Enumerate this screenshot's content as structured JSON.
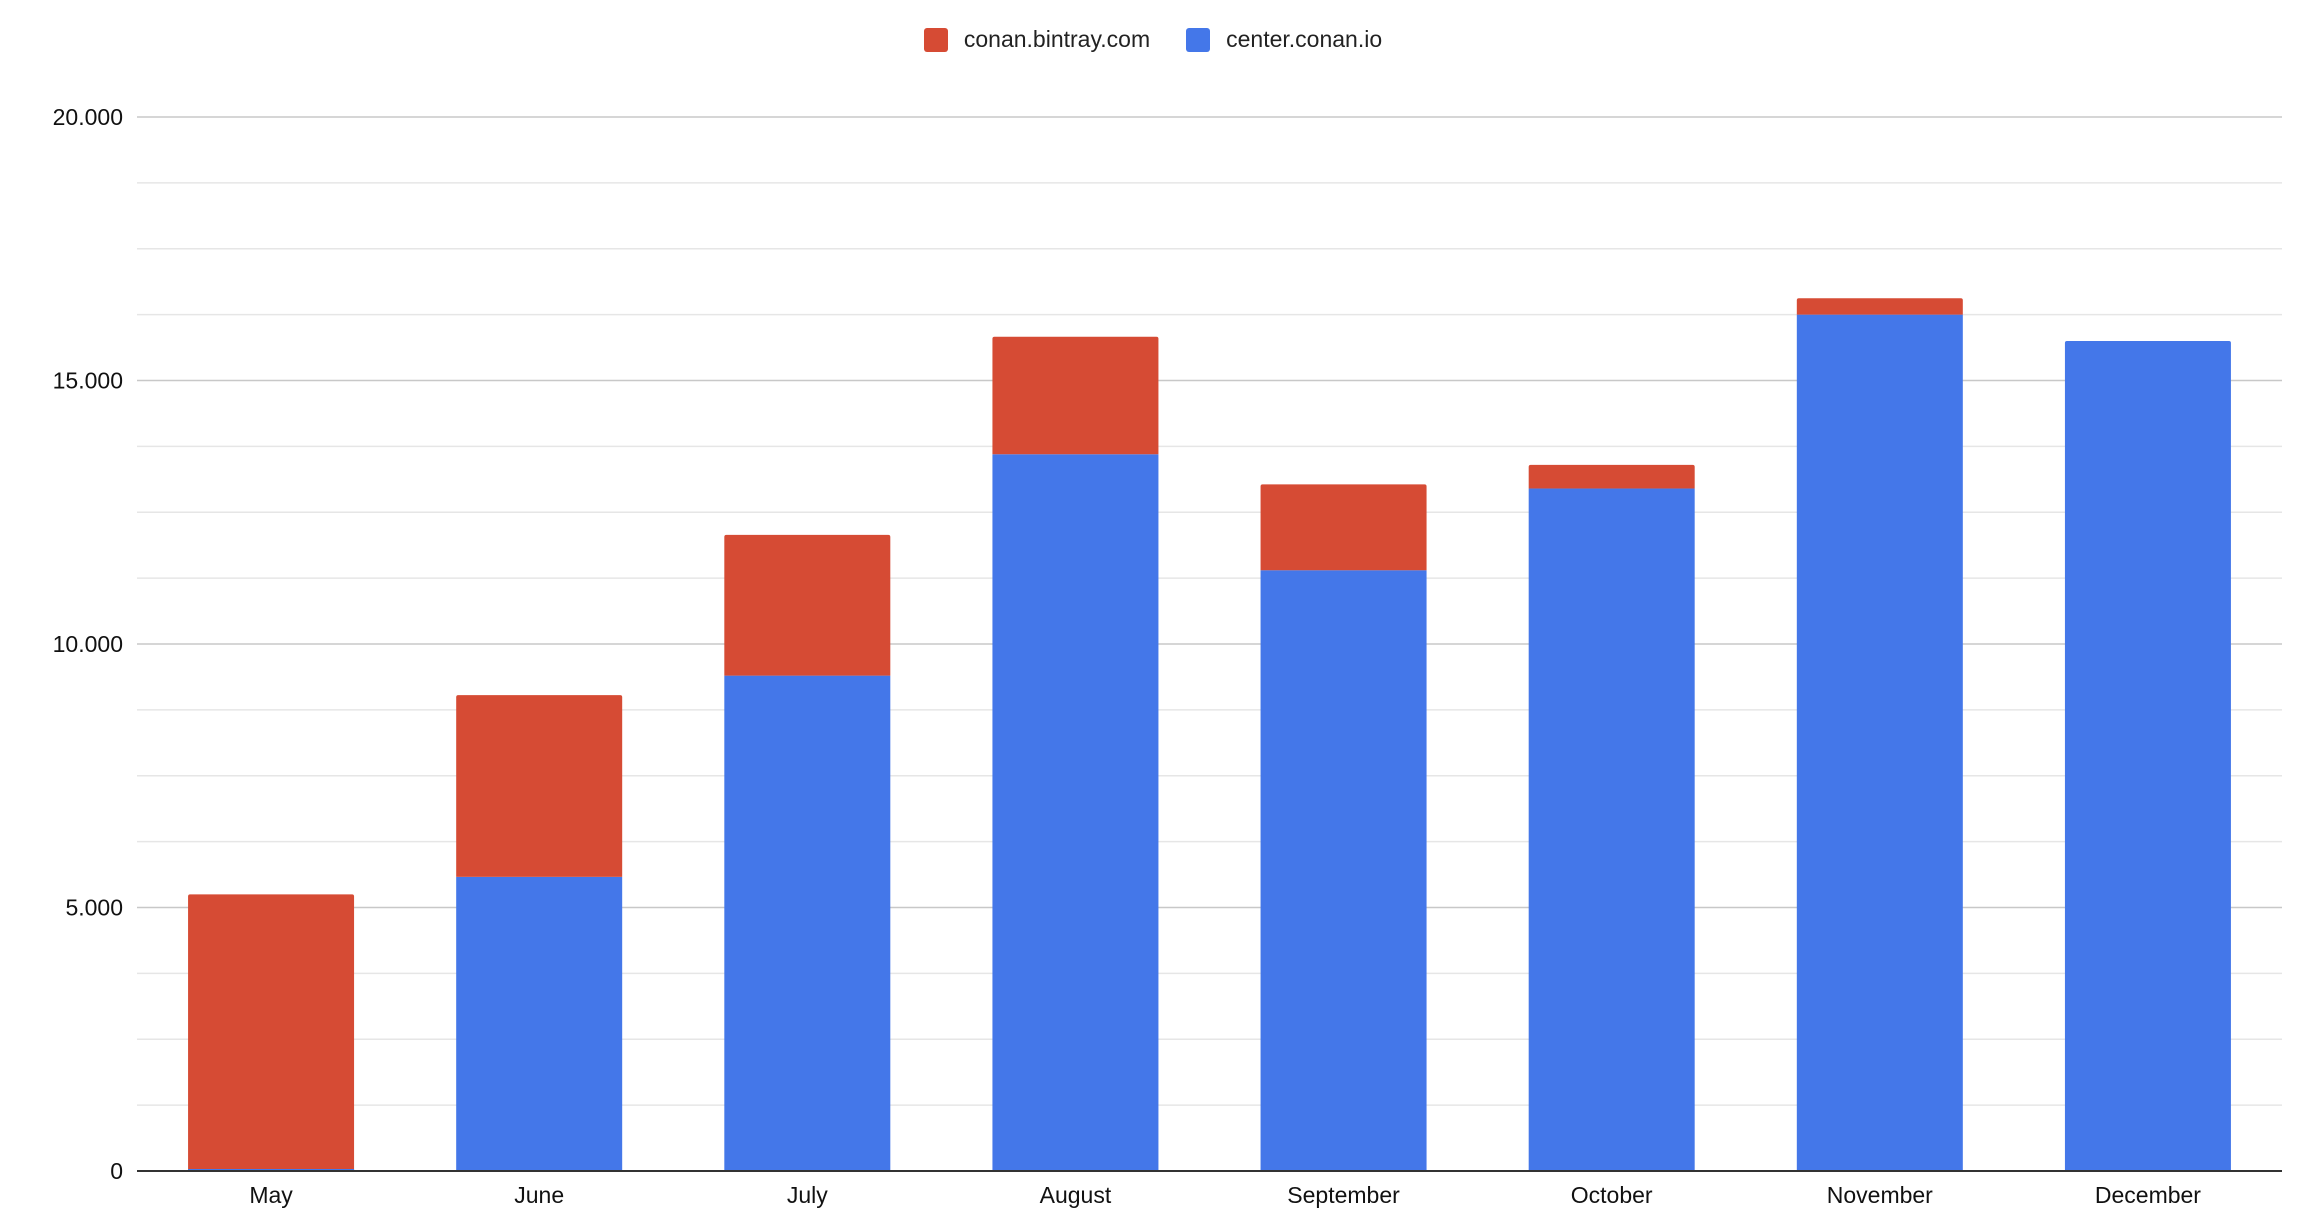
{
  "chart_data": {
    "type": "bar",
    "stacked": true,
    "categories": [
      "May",
      "June",
      "July",
      "August",
      "September",
      "October",
      "November",
      "December"
    ],
    "series": [
      {
        "name": "center.conan.io",
        "color": "#4477E9",
        "values": [
          0,
          5580,
          9400,
          13600,
          11400,
          12950,
          16250,
          15750
        ]
      },
      {
        "name": "conan.bintray.com",
        "color": "#D64B34",
        "values": [
          5250,
          3450,
          2670,
          2230,
          1630,
          450,
          310,
          0
        ]
      }
    ],
    "legend_order": [
      1,
      0
    ],
    "legend_position": "top-center",
    "y_ticks": [
      0,
      5000,
      10000,
      15000,
      20000
    ],
    "y_tick_labels": [
      "0",
      "5.000",
      "10.000",
      "15.000",
      "20.000"
    ],
    "ylim": [
      0,
      20000
    ],
    "minor_gridlines_per_major": 3,
    "grid": true,
    "title": "",
    "xlabel": "",
    "ylabel": ""
  }
}
